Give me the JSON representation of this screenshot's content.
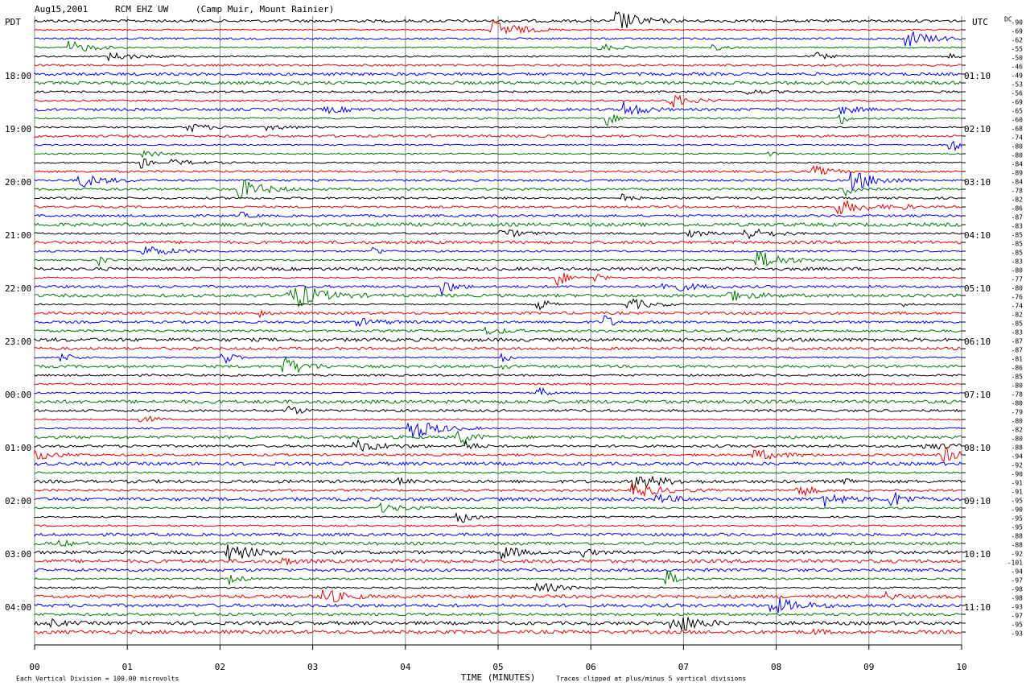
{
  "header": {
    "date": "Aug15,2001",
    "station": "RCM EHZ UW",
    "location": "(Camp Muir, Mount Rainier)"
  },
  "left_axis": {
    "title": "PDT",
    "labels": [
      "18:00",
      "19:00",
      "20:00",
      "21:00",
      "22:00",
      "23:00",
      "00:00",
      "01:00",
      "02:00",
      "03:00",
      "04:00"
    ]
  },
  "right_axis": {
    "title": "UTC",
    "labels": [
      "01:10",
      "02:10",
      "03:10",
      "04:10",
      "05:10",
      "06:10",
      "07:10",
      "08:10",
      "09:10",
      "10:10",
      "11:10"
    ]
  },
  "dc_offsets": {
    "title": "DC",
    "labels": [
      "-90",
      "-69",
      "-62",
      "-55",
      "-50",
      "-46",
      "-49",
      "-53",
      "-56",
      "-69",
      "-65",
      "-60",
      "-68",
      "-74",
      "-80",
      "-80",
      "-84",
      "-89",
      "-84",
      "-78",
      "-82",
      "-86",
      "-87",
      "-83",
      "-85",
      "-85",
      "-85",
      "-83",
      "-80",
      "-77",
      "-80",
      "-76",
      "-74",
      "-82",
      "-85",
      "-83",
      "-87",
      "-87",
      "-81",
      "-86",
      "-85",
      "-80",
      "-78",
      "-80",
      "-79",
      "-80",
      "-82",
      "-80",
      "-88",
      "-94",
      "-92",
      "-90",
      "-91",
      "-91",
      "-95",
      "-90",
      "-95",
      "-95",
      "-88",
      "-88",
      "-92",
      "-101",
      "-94",
      "-97",
      "-98",
      "-98",
      "-93",
      "-97",
      "-95",
      "-93"
    ]
  },
  "x_axis": {
    "title": "TIME (MINUTES)",
    "labels": [
      "00",
      "01",
      "02",
      "03",
      "04",
      "05",
      "06",
      "07",
      "08",
      "09",
      "10"
    ]
  },
  "footer": {
    "scale_note": "Each Vertical Division =  100.00 microvolts",
    "clip_note": "Traces clipped at plus/minus 5 vertical divisions"
  }
}
